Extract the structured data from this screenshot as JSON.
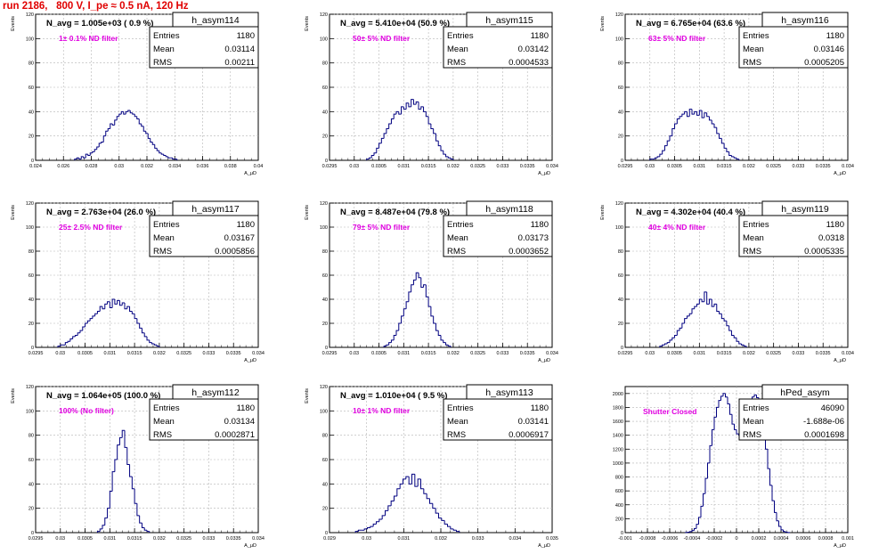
{
  "header": {
    "run_title": "run 2186,   800 V, I_pe ≈ 0.5 nA, 120 Hz"
  },
  "colors": {
    "header_text": "#e00000",
    "histogram_line": "#000080",
    "filter_label": "#e000e0",
    "grid": "#b4b4b4",
    "frame": "#000000"
  },
  "chart_data": [
    {
      "type": "bar",
      "panel": "h_asym114",
      "xlabel": "A_μD",
      "ylabel": "Events",
      "xlim": [
        0.024,
        0.04
      ],
      "ylim": [
        0,
        120
      ],
      "xticks": [
        "0.024",
        "0.026",
        "0.028",
        "0.03",
        "0.032",
        "0.034",
        "0.036",
        "0.038",
        "0.04"
      ],
      "xtick_values": [
        0.024,
        0.026,
        0.028,
        0.03,
        0.032,
        0.034,
        0.036,
        0.038,
        0.04
      ],
      "yticks": [
        0,
        20,
        40,
        60,
        80,
        100,
        120
      ],
      "navg": "N_avg = 1.005e+03 ( 0.9 %)",
      "filter": "1± 0.1% ND filter",
      "stats": [
        [
          "Entries",
          "1180"
        ],
        [
          "Mean",
          "0.03114"
        ],
        [
          "RMS",
          "0.00211"
        ]
      ],
      "x_start": 0.0268,
      "bin_width": 0.00016,
      "values": [
        1,
        2,
        1,
        3,
        2,
        5,
        4,
        6,
        7,
        9,
        11,
        14,
        15,
        20,
        24,
        26,
        30,
        29,
        33,
        36,
        38,
        40,
        38,
        40,
        41,
        39,
        38,
        36,
        34,
        30,
        28,
        24,
        22,
        18,
        15,
        13,
        10,
        8,
        6,
        5,
        4,
        3,
        2,
        2,
        1,
        1
      ]
    },
    {
      "type": "bar",
      "panel": "h_asym115",
      "xlabel": "A_μD",
      "ylabel": "Events",
      "xlim": [
        0.0295,
        0.034
      ],
      "ylim": [
        0,
        120
      ],
      "xticks": [
        "0.0295",
        "0.03",
        "0.0305",
        "0.031",
        "0.0315",
        "0.032",
        "0.0325",
        "0.033",
        "0.0335",
        "0.034"
      ],
      "xtick_values": [
        0.0295,
        0.03,
        0.0305,
        0.031,
        0.0315,
        0.032,
        0.0325,
        0.033,
        0.0335,
        0.034
      ],
      "yticks": [
        0,
        20,
        40,
        60,
        80,
        100,
        120
      ],
      "navg": "N_avg = 5.410e+04 (50.9 %)",
      "filter": "50± 5% ND filter",
      "stats": [
        [
          "Entries",
          "1180"
        ],
        [
          "Mean",
          "0.03142"
        ],
        [
          "RMS",
          "0.0004533"
        ]
      ],
      "x_start": 0.03025,
      "bin_width": 5e-05,
      "values": [
        1,
        2,
        4,
        6,
        10,
        14,
        18,
        22,
        26,
        30,
        34,
        38,
        40,
        38,
        44,
        42,
        47,
        44,
        50,
        46,
        48,
        42,
        44,
        40,
        36,
        30,
        26,
        22,
        16,
        12,
        8,
        5,
        3,
        2,
        1
      ]
    },
    {
      "type": "bar",
      "panel": "h_asym116",
      "xlabel": "A_μD",
      "ylabel": "Events",
      "xlim": [
        0.0295,
        0.034
      ],
      "ylim": [
        0,
        120
      ],
      "xticks": [
        "0.0295",
        "0.03",
        "0.0305",
        "0.031",
        "0.0315",
        "0.032",
        "0.0325",
        "0.033",
        "0.0335",
        "0.034"
      ],
      "xtick_values": [
        0.0295,
        0.03,
        0.0305,
        0.031,
        0.0315,
        0.032,
        0.0325,
        0.033,
        0.0335,
        0.034
      ],
      "yticks": [
        0,
        20,
        40,
        60,
        80,
        100,
        120
      ],
      "navg": "N_avg = 6.765e+04 (63.6 %)",
      "filter": "63± 5% ND filter",
      "stats": [
        [
          "Entries",
          "1180"
        ],
        [
          "Mean",
          "0.03146"
        ],
        [
          "RMS",
          "0.0005205"
        ]
      ],
      "x_start": 0.03,
      "bin_width": 5e-05,
      "values": [
        1,
        1,
        2,
        3,
        5,
        8,
        12,
        16,
        20,
        26,
        30,
        34,
        36,
        38,
        40,
        36,
        42,
        38,
        40,
        37,
        41,
        35,
        39,
        36,
        33,
        30,
        27,
        22,
        18,
        14,
        10,
        7,
        4,
        3,
        2,
        1
      ]
    },
    {
      "type": "bar",
      "panel": "h_asym117",
      "xlabel": "A_μD",
      "ylabel": "Events",
      "xlim": [
        0.0295,
        0.034
      ],
      "ylim": [
        0,
        120
      ],
      "xticks": [
        "0.0295",
        "0.03",
        "0.0305",
        "0.031",
        "0.0315",
        "0.032",
        "0.0325",
        "0.033",
        "0.0335",
        "0.034"
      ],
      "xtick_values": [
        0.0295,
        0.03,
        0.0305,
        0.031,
        0.0315,
        0.032,
        0.0325,
        0.033,
        0.0335,
        0.034
      ],
      "yticks": [
        0,
        20,
        40,
        60,
        80,
        100,
        120
      ],
      "navg": "N_avg = 2.763e+04 (26.0 %)",
      "filter": "25± 2.5% ND filter",
      "stats": [
        [
          "Entries",
          "1180"
        ],
        [
          "Mean",
          "0.03167"
        ],
        [
          "RMS",
          "0.0005856"
        ]
      ],
      "x_start": 0.02995,
      "bin_width": 5e-05,
      "values": [
        1,
        2,
        2,
        4,
        5,
        7,
        9,
        10,
        12,
        14,
        17,
        20,
        22,
        24,
        26,
        28,
        30,
        34,
        32,
        36,
        38,
        33,
        40,
        36,
        39,
        35,
        37,
        32,
        34,
        30,
        28,
        24,
        20,
        16,
        12,
        9,
        6,
        4,
        3,
        2,
        1
      ]
    },
    {
      "type": "bar",
      "panel": "h_asym118",
      "xlabel": "A_μD",
      "ylabel": "Events",
      "xlim": [
        0.0295,
        0.034
      ],
      "ylim": [
        0,
        120
      ],
      "xticks": [
        "0.0295",
        "0.03",
        "0.0305",
        "0.031",
        "0.0315",
        "0.032",
        "0.0325",
        "0.033",
        "0.0335",
        "0.034"
      ],
      "xtick_values": [
        0.0295,
        0.03,
        0.0305,
        0.031,
        0.0315,
        0.032,
        0.0325,
        0.033,
        0.0335,
        0.034
      ],
      "yticks": [
        0,
        20,
        40,
        60,
        80,
        100,
        120
      ],
      "navg": "N_avg = 8.487e+04 (79.8 %)",
      "filter": "79± 5% ND filter",
      "stats": [
        [
          "Entries",
          "1180"
        ],
        [
          "Mean",
          "0.03173"
        ],
        [
          "RMS",
          "0.0003652"
        ]
      ],
      "x_start": 0.0306,
      "bin_width": 5e-05,
      "values": [
        1,
        2,
        4,
        6,
        10,
        14,
        20,
        26,
        32,
        38,
        46,
        52,
        56,
        62,
        58,
        50,
        52,
        42,
        34,
        26,
        20,
        14,
        10,
        6,
        4,
        2,
        1
      ]
    },
    {
      "type": "bar",
      "panel": "h_asym119",
      "xlabel": "A_μD",
      "ylabel": "Events",
      "xlim": [
        0.0295,
        0.034
      ],
      "ylim": [
        0,
        120
      ],
      "xticks": [
        "0.0295",
        "0.03",
        "0.0305",
        "0.031",
        "0.0315",
        "0.032",
        "0.0325",
        "0.033",
        "0.0335",
        "0.034"
      ],
      "xtick_values": [
        0.0295,
        0.03,
        0.0305,
        0.031,
        0.0315,
        0.032,
        0.0325,
        0.033,
        0.0335,
        0.034
      ],
      "yticks": [
        0,
        20,
        40,
        60,
        80,
        100,
        120
      ],
      "navg": "N_avg = 4.302e+04 (40.4 %)",
      "filter": "40± 4% ND filter",
      "stats": [
        [
          "Entries",
          "1180"
        ],
        [
          "Mean",
          "0.0318"
        ],
        [
          "RMS",
          "0.0005335"
        ]
      ],
      "x_start": 0.0302,
      "bin_width": 5e-05,
      "values": [
        1,
        2,
        3,
        4,
        6,
        8,
        10,
        14,
        16,
        20,
        24,
        26,
        28,
        32,
        34,
        36,
        40,
        38,
        46,
        36,
        40,
        34,
        36,
        30,
        28,
        24,
        22,
        18,
        14,
        10,
        8,
        5,
        3,
        2,
        1
      ]
    },
    {
      "type": "bar",
      "panel": "h_asym112",
      "xlabel": "A_μD",
      "ylabel": "Events",
      "xlim": [
        0.0295,
        0.034
      ],
      "ylim": [
        0,
        120
      ],
      "xticks": [
        "0.0295",
        "0.03",
        "0.0305",
        "0.031",
        "0.0315",
        "0.032",
        "0.0325",
        "0.033",
        "0.0335",
        "0.034"
      ],
      "xtick_values": [
        0.0295,
        0.03,
        0.0305,
        0.031,
        0.0315,
        0.032,
        0.0325,
        0.033,
        0.0335,
        0.034
      ],
      "yticks": [
        0,
        20,
        40,
        60,
        80,
        100,
        120
      ],
      "navg": "N_avg = 1.064e+05 (100.0 %)",
      "filter": "100% (No filter)",
      "stats": [
        [
          "Entries",
          "1180"
        ],
        [
          "Mean",
          "0.03134"
        ],
        [
          "RMS",
          "0.0002871"
        ]
      ],
      "x_start": 0.03075,
      "bin_width": 5e-05,
      "values": [
        1,
        3,
        6,
        12,
        20,
        34,
        50,
        60,
        72,
        78,
        84,
        70,
        56,
        46,
        36,
        24,
        14,
        8,
        4,
        2,
        1
      ]
    },
    {
      "type": "bar",
      "panel": "h_asym113",
      "xlabel": "A_μD",
      "ylabel": "Events",
      "xlim": [
        0.029,
        0.035
      ],
      "ylim": [
        0,
        120
      ],
      "xticks": [
        "0.029",
        "0.03",
        "0.031",
        "0.032",
        "0.033",
        "0.034",
        "0.035"
      ],
      "xtick_values": [
        0.029,
        0.03,
        0.031,
        0.032,
        0.033,
        0.034,
        0.035
      ],
      "yticks": [
        0,
        20,
        40,
        60,
        80,
        100,
        120
      ],
      "navg": "N_avg = 1.010e+04 ( 9.5 %)",
      "filter": "10± 1% ND filter",
      "stats": [
        [
          "Entries",
          "1180"
        ],
        [
          "Mean",
          "0.03141"
        ],
        [
          "RMS",
          "0.0006917"
        ]
      ],
      "x_start": 0.0297,
      "bin_width": 8e-05,
      "values": [
        1,
        2,
        2,
        3,
        4,
        5,
        7,
        9,
        11,
        14,
        18,
        22,
        26,
        30,
        36,
        40,
        44,
        46,
        40,
        48,
        38,
        44,
        36,
        32,
        28,
        24,
        20,
        16,
        12,
        10,
        7,
        5,
        3,
        2,
        1
      ]
    },
    {
      "type": "bar",
      "panel": "hPed_asym",
      "xlabel": "A_μD",
      "ylabel": "",
      "xlim": [
        -0.001,
        0.001
      ],
      "ylim": [
        0,
        2100
      ],
      "xticks": [
        "-0.001",
        "-0.0008",
        "-0.0006",
        "-0.0004",
        "-0.0002",
        "0",
        "0.0002",
        "0.0004",
        "0.0006",
        "0.0008",
        "0.001"
      ],
      "xtick_values": [
        -0.001,
        -0.0008,
        -0.0006,
        -0.0004,
        -0.0002,
        0,
        0.0002,
        0.0004,
        0.0006,
        0.0008,
        0.001
      ],
      "yticks": [
        0,
        200,
        400,
        600,
        800,
        1000,
        1200,
        1400,
        1600,
        1800,
        2000
      ],
      "navg": "",
      "filter": "Shutter Closed",
      "stats": [
        [
          "Entries",
          "46090"
        ],
        [
          "Mean",
          "-1.688e-06"
        ],
        [
          "RMS",
          "0.0001698"
        ]
      ],
      "x_start": -0.00046,
      "bin_width": 2e-05,
      "values": [
        2,
        6,
        14,
        30,
        60,
        120,
        220,
        380,
        560,
        780,
        1000,
        1250,
        1480,
        1660,
        1800,
        1900,
        1960,
        2000,
        1950,
        1850,
        1700,
        1560,
        1480,
        1420,
        1400,
        1440,
        1520,
        1640,
        1780,
        1880,
        1950,
        1980,
        1940,
        1860,
        1700,
        1480,
        1200,
        920,
        680,
        460,
        290,
        170,
        90,
        40,
        16,
        6,
        2
      ]
    }
  ]
}
